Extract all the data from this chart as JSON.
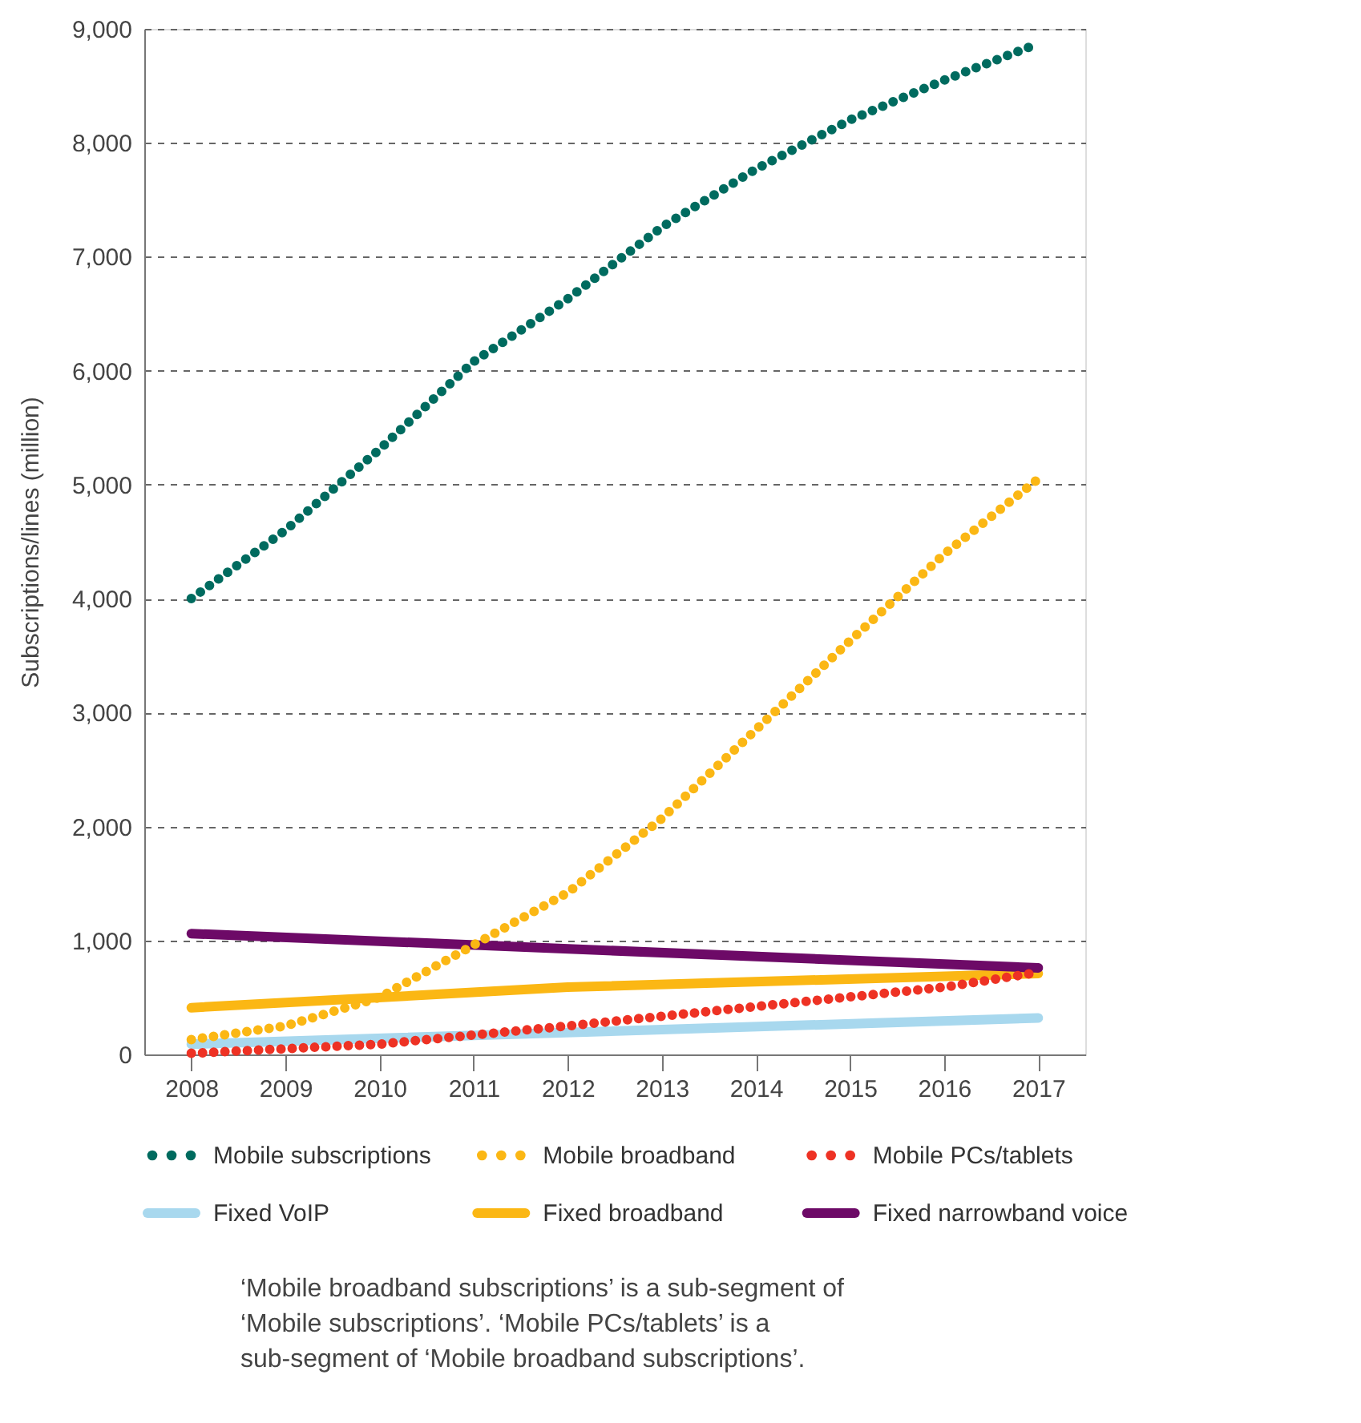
{
  "chart_data": {
    "type": "line",
    "ylabel": "Subscriptions/lines (million)",
    "x": [
      2008,
      2009,
      2010,
      2011,
      2012,
      2013,
      2014,
      2015,
      2016,
      2017
    ],
    "xlim": [
      2007.5,
      2017.5
    ],
    "xticks": [
      2008,
      2009,
      2010,
      2011,
      2012,
      2013,
      2014,
      2015,
      2016,
      2017
    ],
    "ylim": [
      0,
      9000
    ],
    "yticks": [
      {
        "value": 0,
        "label": "0"
      },
      {
        "value": 1000,
        "label": "1,000"
      },
      {
        "value": 2000,
        "label": "2,000"
      },
      {
        "value": 3000,
        "label": "3,000"
      },
      {
        "value": 4000,
        "label": "4,000"
      },
      {
        "value": 5000,
        "label": "5,000"
      },
      {
        "value": 6000,
        "label": "6,000"
      },
      {
        "value": 7000,
        "label": "7,000"
      },
      {
        "value": 8000,
        "label": "8,000"
      },
      {
        "value": 9000,
        "label": "9,000"
      }
    ],
    "grid": "y",
    "legend": "bottom",
    "series": [
      {
        "name": "Mobile subscriptions",
        "color": "#006b5f",
        "line_style": "dotted",
        "values": [
          4000,
          4600,
          5310,
          6080,
          6630,
          7260,
          7770,
          8200,
          8550,
          8870
        ]
      },
      {
        "name": "Mobile broadband",
        "color": "#fbb714",
        "line_style": "dotted",
        "values": [
          130,
          250,
          500,
          960,
          1420,
          2070,
          2850,
          3630,
          4390,
          5050
        ]
      },
      {
        "name": "Mobile PCs/tablets",
        "color": "#ee3224",
        "line_style": "dotted",
        "x": [
          2008,
          2010,
          2012,
          2014,
          2016,
          2017
        ],
        "values": [
          10,
          90,
          250,
          420,
          590,
          720
        ]
      },
      {
        "name": "Fixed VoIP",
        "color": "#a8d8ee",
        "line_style": "solid",
        "x": [
          2008,
          2017
        ],
        "values": [
          90,
          320
        ]
      },
      {
        "name": "Fixed broadband",
        "color": "#fbb714",
        "line_style": "solid",
        "x": [
          2008,
          2012,
          2017
        ],
        "values": [
          410,
          590,
          710
        ]
      },
      {
        "name": "Fixed narrowband voice",
        "color": "#6d0a67",
        "line_style": "solid",
        "x": [
          2008,
          2017
        ],
        "values": [
          1060,
          760
        ]
      }
    ],
    "annotations": [
      "‘Mobile broadband subscriptions’ is a sub-segment of ‘Mobile subscriptions’. ‘Mobile PCs/tablets’ is a sub-segment of ‘Mobile broadband subscriptions’."
    ]
  }
}
